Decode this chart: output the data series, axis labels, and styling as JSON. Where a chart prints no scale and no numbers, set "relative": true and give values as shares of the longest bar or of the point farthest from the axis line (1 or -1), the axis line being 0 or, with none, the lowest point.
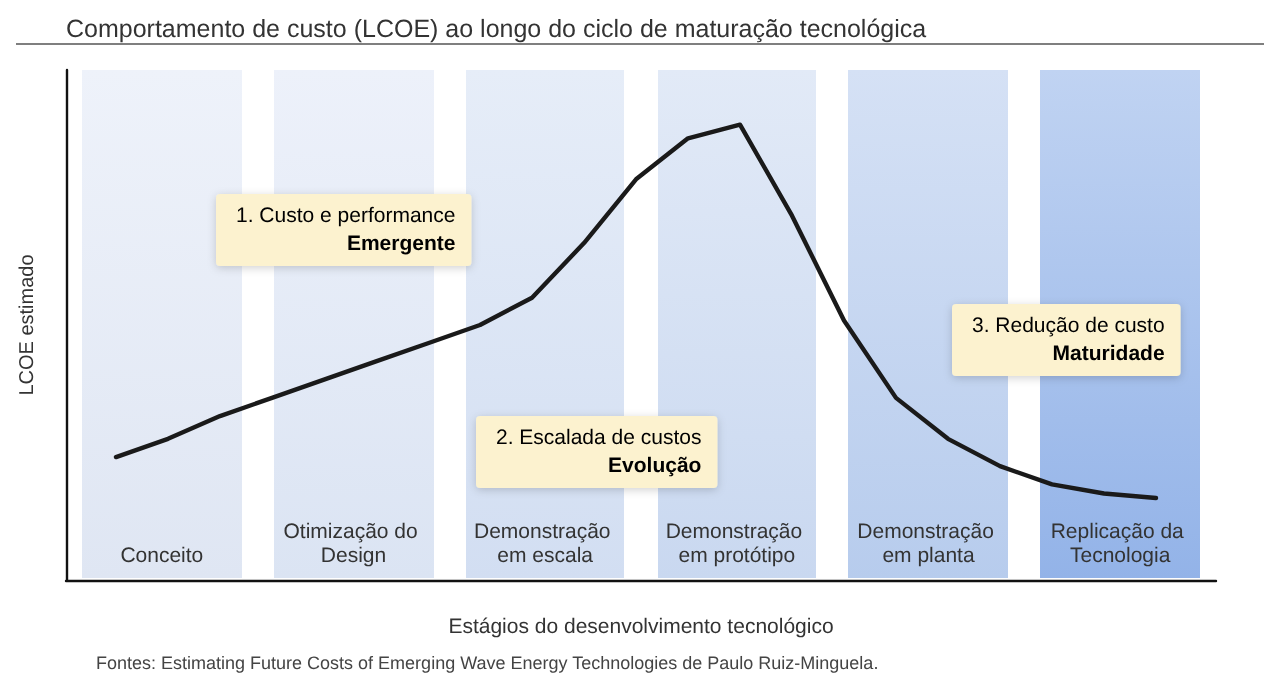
{
  "chart_data": {
    "type": "line",
    "title": "Comportamento de custo (LCOE) ao longo do ciclo de maturação tecnológica",
    "xlabel": "Estágios do desenvolvimento tecnológico",
    "ylabel": "LCOE estimado",
    "relative": true,
    "categories": [
      null,
      null,
      null,
      null,
      null,
      null,
      null,
      null,
      null,
      null,
      null,
      null,
      null,
      null,
      null,
      null,
      null,
      null,
      null,
      null,
      null
    ],
    "series": [
      {
        "color": "#1a1a1a",
        "values": [
          0.27,
          0.31,
          0.36,
          0.4,
          0.44,
          0.48,
          0.52,
          0.56,
          0.62,
          0.74,
          0.88,
          0.97,
          1.0,
          0.8,
          0.57,
          0.4,
          0.31,
          0.25,
          0.21,
          0.19,
          0.18
        ]
      }
    ],
    "marker": "none",
    "line_style": "solid",
    "grid": false,
    "annotations": [
      "Conceito",
      "Otimização do Design",
      "Demonstração em escala",
      "Demonstração em protótipo",
      "Demonstração em planta",
      "Replicação da Tecnologia",
      "1. Custo e performance\nEmergente",
      "2. Escalada de custos\nEvolução",
      "3. Redução de custo\nMaturidade",
      "Fontes: Estimating Future Costs of Emerging Wave Energy Technologies de Paulo Ruiz-Minguela."
    ]
  }
}
